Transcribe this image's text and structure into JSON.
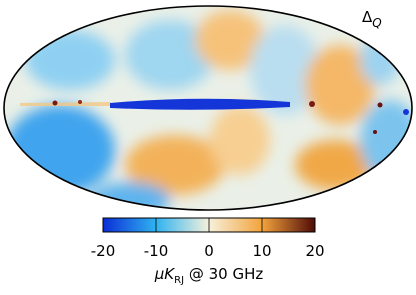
{
  "chart_data": {
    "type": "map",
    "projection": "mollweide",
    "label": "Δ",
    "label_sub": "Q",
    "colorbar": {
      "clim": [
        -20,
        20
      ],
      "ticks": [
        -20,
        -10,
        0,
        10,
        20
      ],
      "colormap": [
        "#0b2ed6",
        "#2fb3f0",
        "#f6f1dc",
        "#f3a33c",
        "#4f0b08"
      ],
      "label": "μK",
      "label_sub": "RJ",
      "label_rest": " @ 30 GHz"
    }
  }
}
